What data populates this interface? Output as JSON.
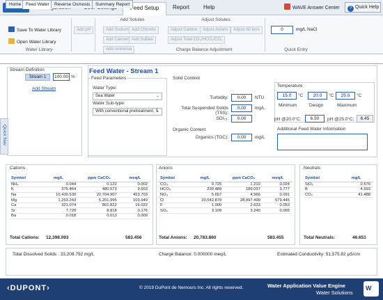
{
  "ribbon_tabs": {
    "file": "File ▾",
    "configuration": "Configuration",
    "user_settings": "User Settings",
    "feed_setup": "Feed Setup",
    "report": "Report",
    "help": "Help"
  },
  "answer_center": "WAVE Answer Center",
  "quick_help": "Quick Help",
  "ribbon": {
    "save_library": "Save To Water Library",
    "open_library": "Open Water Library",
    "water_library_group": "Water Library",
    "add_ph": "Add pH",
    "add_solutes_header": "Add Solutes",
    "add_sodium": "Add Sodium",
    "add_chloride": "Add Chloride",
    "add_calcium": "Add Calcium",
    "add_sulfate": "Add Sulfate",
    "add_ammonia": "Add Ammonia",
    "adjust_solutes_header": "Adjust Solutes",
    "adjust_cations": "Adjust Cations",
    "adjust_anions": "Adjust Anions",
    "adjust_all_ions": "Adjust All Ions",
    "adjust_total": "Adjust Total CO₂/HCO₃/CO₃",
    "charge_balance_group": "Charge Balance Adjustment",
    "nacl_value": "0",
    "nacl_unit": "mg/L NaCl",
    "quick_entry_group": "Quick Entry"
  },
  "page_tabs": [
    "Home",
    "Feed Water",
    "Reverse Osmosis",
    "Summary Report"
  ],
  "quick_nav": "Quick Nav",
  "stream_def": {
    "title": "Stream Definition",
    "stream_name": "Stream 1",
    "percent": "100.00",
    "percent_unit": "%",
    "add_stream": "Add Stream"
  },
  "feed_water": {
    "title": "Feed Water -  Stream 1",
    "params_label": "Feed Parameters",
    "water_type_label": "Water Type:",
    "water_type": "Sea Water",
    "water_subtype_label": "Water Sub-type:",
    "water_subtype": "With conventional pretreatment, S",
    "solid_content_label": "Solid Content",
    "turbidity_label": "Turbidity:",
    "turbidity": "0.00",
    "turbidity_unit": "NTU",
    "tss_label": "Total Suspended Solids (TSS):",
    "tss": "0.00",
    "tss_unit": "mg/L",
    "sdi_label": "SDI₁₅:",
    "sdi": "0.00",
    "organic_label": "Organic Content",
    "toc_label": "Organics (TOC):",
    "toc": "0.00",
    "toc_unit": "mg/L",
    "temperature_label": "Temperature",
    "temp_min": "15.0",
    "temp_design": "20.0",
    "temp_max": "25.0",
    "temp_unit": "°C",
    "min_label": "Minimum",
    "design_label": "Design",
    "max_label": "Maximum",
    "ph20_label": "pH @20.0°C:",
    "ph20": "6.50",
    "ph25_label": "pH @25.0°C:",
    "ph25": "6.45",
    "additional_label": "Additional Feed Water Information"
  },
  "cations": {
    "title": "Cations",
    "headers": [
      "Symbol",
      "mg/L",
      "ppm CaCO₃",
      "meq/L"
    ],
    "rows": [
      [
        "NH₄",
        "0.044",
        "0.122",
        "0.002"
      ],
      [
        "K",
        "375.464",
        "480.573",
        "9.603"
      ],
      [
        "Na",
        "10,430.530",
        "22,704.907",
        "453.703"
      ],
      [
        "Mg",
        "1,263.243",
        "5,201.995",
        "103.949"
      ],
      [
        "Ca",
        "321.074",
        "801.822",
        "16.022"
      ],
      [
        "Sr",
        "7.720",
        "8.818",
        "0.176"
      ],
      [
        "Ba",
        "0.018",
        "0.013",
        "0.000"
      ]
    ],
    "total_label": "Total Cations:",
    "total_mg": "12,398.093",
    "total_meq": "583.456"
  },
  "anions": {
    "title": "Anions",
    "headers": [
      "Symbol",
      "mg/L",
      "ppm CaCO₃",
      "meq/L"
    ],
    "rows": [
      [
        "CO₃",
        "0.725",
        "1.210",
        "0.024"
      ],
      [
        "HCO₃",
        "230.489",
        "189.037",
        "3.777"
      ],
      [
        "NO₃",
        "5.657",
        "4.566",
        "0.091"
      ],
      [
        "Cl",
        "20,542.879",
        "28,997.499",
        "579.445"
      ],
      [
        "F",
        "1.000",
        "2.633",
        "0.053"
      ],
      [
        "SO₄",
        "3.109",
        "3.240",
        "0.065"
      ]
    ],
    "total_label": "Total Anions:",
    "total_mg": "20,783.860",
    "total_meq": "583.455"
  },
  "neutrals": {
    "title": "Neutrals",
    "headers": [
      "Symbol",
      "mg/L"
    ],
    "rows": [
      [
        "SiO₂",
        "0.570"
      ],
      [
        "B",
        "4.593"
      ],
      [
        "CO₂",
        "41.488"
      ]
    ],
    "total_label": "Total Neutrals:",
    "total_mg": "46.651"
  },
  "summary": {
    "tds": "Total Dissolved Solids : 33,208.792 mg/L",
    "charge": "Charge Balance: 0.000000 meq/L",
    "conductivity": "Estimated Conductivity: 51,575.82 µS/cm"
  },
  "footer": {
    "logo": "‹DUPONT›",
    "copyright": "© 2019 DuPont de Nemours Inc. All rights reserved.",
    "product_line1": "Water Application Value Engine",
    "product_line2": "Water Solutions",
    "badge": "W"
  }
}
